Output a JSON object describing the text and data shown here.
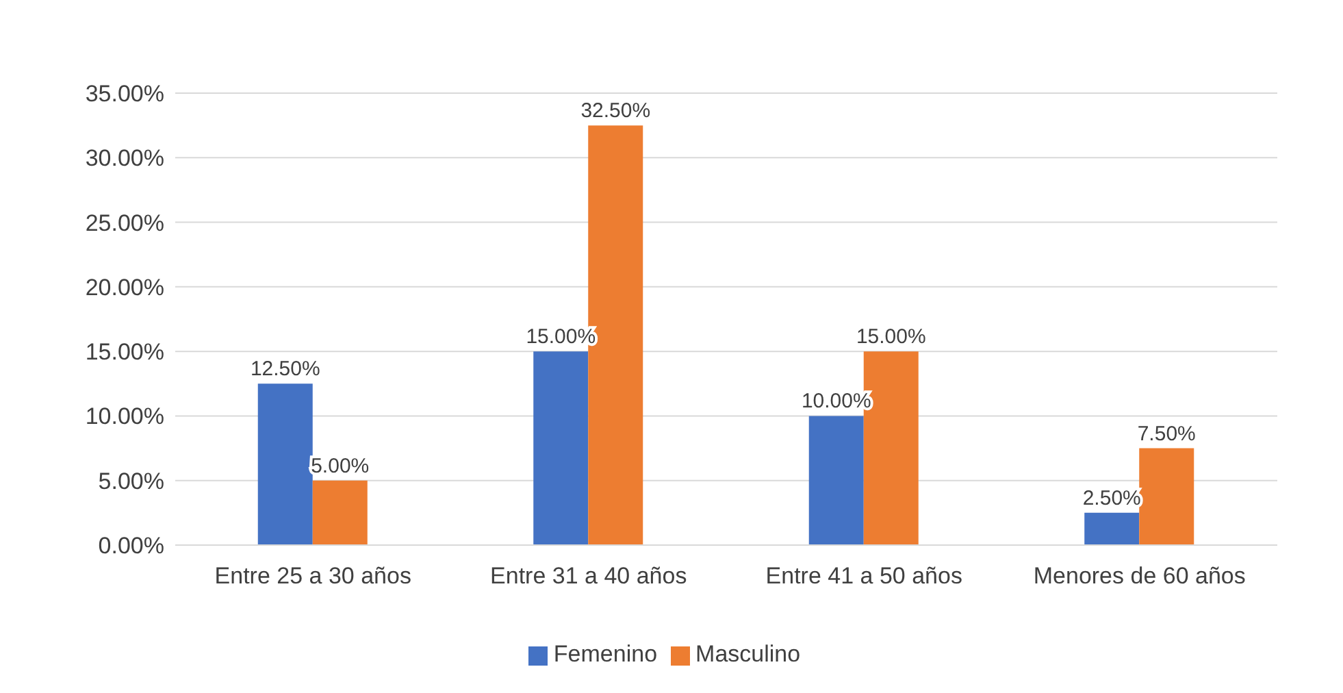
{
  "chart_data": {
    "type": "bar",
    "categories": [
      "Entre 25 a 30 años",
      "Entre 31 a 40 años",
      "Entre 41 a 50 años",
      "Menores de 60 años"
    ],
    "series": [
      {
        "name": "Femenino",
        "color": "#4472c4",
        "values": [
          12.5,
          15,
          10,
          2.5
        ],
        "value_labels": [
          "12.50%",
          "15.00%",
          "10.00%",
          "2.50%"
        ]
      },
      {
        "name": "Masculino",
        "color": "#ed7d31",
        "values": [
          5,
          32.5,
          15,
          7.5
        ],
        "value_labels": [
          "5.00%",
          "32.50%",
          "15.00%",
          "7.50%"
        ]
      }
    ],
    "ylim": [
      0,
      35
    ],
    "yticks": [
      {
        "value": 0,
        "label": "0.00%"
      },
      {
        "value": 5,
        "label": "5.00%"
      },
      {
        "value": 10,
        "label": "10.00%"
      },
      {
        "value": 15,
        "label": "15.00%"
      },
      {
        "value": 20,
        "label": "20.00%"
      },
      {
        "value": 25,
        "label": "25.00%"
      },
      {
        "value": 30,
        "label": "30.00%"
      },
      {
        "value": 35,
        "label": "35.00%"
      }
    ],
    "grid": "y",
    "legend": "bottom"
  }
}
